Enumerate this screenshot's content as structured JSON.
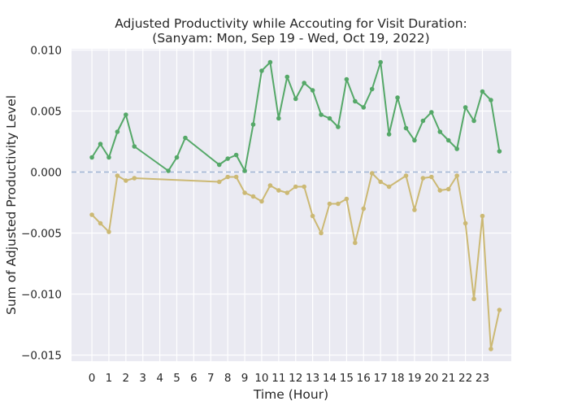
{
  "chart_data": {
    "type": "line",
    "title_line1": "Adjusted Productivity while Accouting for Visit Duration:",
    "title_line2": "(Sanyam: Mon, Sep 19 - Wed, Oct 19, 2022)",
    "xlabel": "Time (Hour)",
    "ylabel": "Sum of Adjusted Productivity Level",
    "xlim": [
      -1.2,
      24.7
    ],
    "ylim": [
      -0.0155,
      0.0101
    ],
    "xticks": [
      0,
      1,
      2,
      3,
      4,
      5,
      6,
      7,
      8,
      9,
      10,
      11,
      12,
      13,
      14,
      15,
      16,
      17,
      18,
      19,
      20,
      21,
      22,
      23
    ],
    "yticks": [
      0.01,
      0.005,
      0.0,
      -0.005,
      -0.01,
      -0.015
    ],
    "ytick_labels": [
      "0.010",
      "0.005",
      "0.000",
      "−0.005",
      "−0.010",
      "−0.015"
    ],
    "grid": true,
    "reference_line": {
      "y": 0.0,
      "color": "#9fb4d4",
      "style": "dashed"
    },
    "colors": {
      "background": "#eaeaf2",
      "grid": "#ffffff",
      "series_positive": "#55a868",
      "series_negative": "#ccb974"
    },
    "series": [
      {
        "color": "#55a868",
        "x": [
          0,
          0.5,
          1,
          1.5,
          2,
          2.5,
          4.5,
          5,
          5.5,
          7.5,
          8,
          8.5,
          9,
          9.5,
          10,
          10.5,
          11,
          11.5,
          12,
          12.5,
          13,
          13.5,
          14,
          14.5,
          15,
          15.5,
          16,
          16.5,
          17,
          17.5,
          18,
          18.5,
          19,
          19.5,
          20,
          20.5,
          21,
          21.5,
          22,
          22.5,
          23,
          23.5,
          24
        ],
        "values": [
          0.0012,
          0.0023,
          0.0012,
          0.0033,
          0.0047,
          0.0021,
          0.0001,
          0.0012,
          0.0028,
          0.0006,
          0.0011,
          0.0014,
          0.0001,
          0.0039,
          0.0083,
          0.009,
          0.0044,
          0.0078,
          0.006,
          0.0073,
          0.0067,
          0.0047,
          0.0044,
          0.0037,
          0.0076,
          0.0058,
          0.0053,
          0.0068,
          0.009,
          0.0031,
          0.0061,
          0.0036,
          0.0026,
          0.0042,
          0.0049,
          0.0033,
          0.0026,
          0.0019,
          0.0053,
          0.0042,
          0.0066,
          0.0059,
          0.0017
        ]
      },
      {
        "color": "#ccb974",
        "x": [
          0,
          0.5,
          1,
          1.5,
          2,
          2.5,
          7.5,
          8,
          8.5,
          9,
          9.5,
          10,
          10.5,
          11,
          11.5,
          12,
          12.5,
          13,
          13.5,
          14,
          14.5,
          15,
          15.5,
          16,
          16.5,
          17,
          17.5,
          18.5,
          19,
          19.5,
          20,
          20.5,
          21,
          21.5,
          22,
          22.5,
          23,
          23.5,
          24
        ],
        "values": [
          -0.0035,
          -0.0042,
          -0.0049,
          -0.0003,
          -0.0007,
          -0.0005,
          -0.0008,
          -0.0004,
          -0.0004,
          -0.0017,
          -0.002,
          -0.0024,
          -0.0011,
          -0.0015,
          -0.0017,
          -0.0012,
          -0.0012,
          -0.0036,
          -0.005,
          -0.0026,
          -0.0026,
          -0.0022,
          -0.0058,
          -0.003,
          -0.0001,
          -0.0008,
          -0.0012,
          -0.0003,
          -0.0031,
          -0.0005,
          -0.0004,
          -0.0015,
          -0.0014,
          -0.0003,
          -0.0042,
          -0.0104,
          -0.0036,
          -0.0145,
          -0.0113
        ]
      }
    ]
  }
}
